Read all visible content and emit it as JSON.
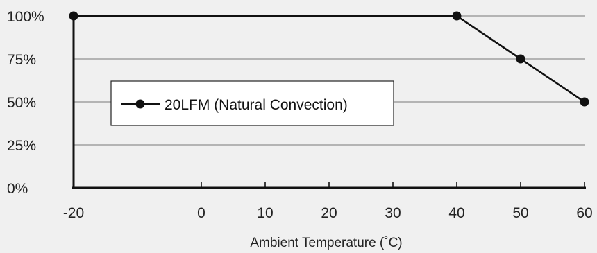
{
  "chart_data": {
    "type": "line",
    "title": "",
    "xlabel": "Ambient Temperature (˚C)",
    "ylabel": "",
    "x_ticks": [
      "-20",
      "0",
      "10",
      "20",
      "30",
      "40",
      "50",
      "60"
    ],
    "x_tick_values": [
      -20,
      0,
      10,
      20,
      30,
      40,
      50,
      60
    ],
    "y_ticks": [
      "0%",
      "25%",
      "50%",
      "75%",
      "100%"
    ],
    "y_tick_values": [
      0,
      25,
      50,
      75,
      100
    ],
    "xlim": [
      -20,
      60
    ],
    "ylim": [
      0,
      100
    ],
    "grid": "horizontal",
    "legend_position": "left-middle",
    "series": [
      {
        "name": "20LFM (Natural Convection)",
        "color": "#111111",
        "x": [
          -20,
          40,
          50,
          60
        ],
        "y": [
          100,
          100,
          75,
          50
        ]
      }
    ]
  },
  "colors": {
    "background": "#f0f0f0",
    "grid": "#777777",
    "line": "#111111",
    "legend_fill": "#ffffff"
  }
}
